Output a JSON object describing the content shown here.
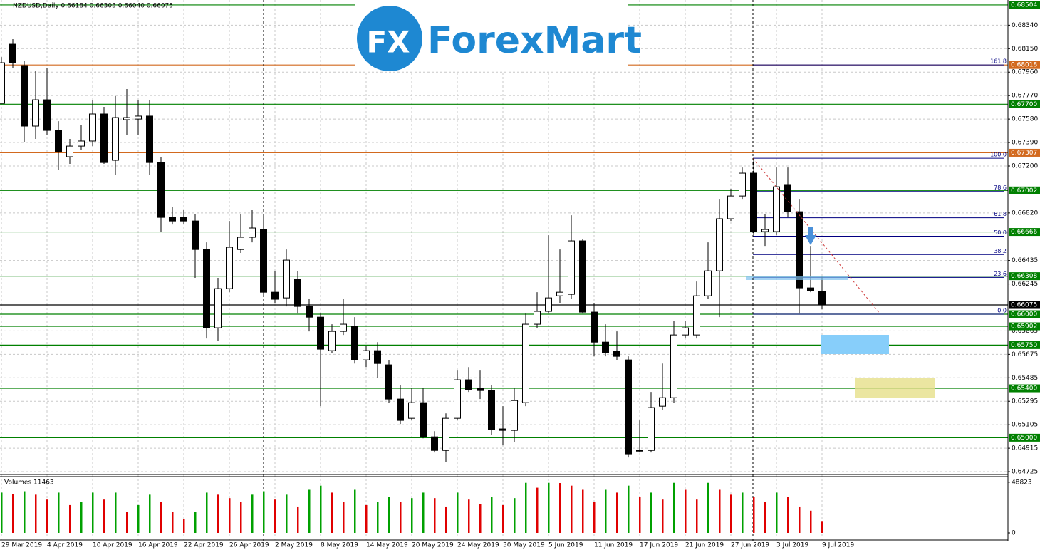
{
  "logo": {
    "icon": "FX",
    "name": "ForexMart"
  },
  "chart_data": {
    "type": "candlestick",
    "title": "NZDUSD,Daily  0.66184 0.66303 0.66040 0.66075",
    "categories": [
      "29 Mar 2019",
      null,
      null,
      null,
      "4 Apr 2019",
      null,
      null,
      null,
      "10 Apr 2019",
      null,
      null,
      null,
      "16 Apr 2019",
      null,
      null,
      null,
      "22 Apr 2019",
      null,
      null,
      null,
      "26 Apr 2019",
      null,
      null,
      null,
      "2 May 2019",
      null,
      null,
      null,
      "8 May 2019",
      null,
      null,
      null,
      "14 May 2019",
      null,
      null,
      null,
      "20 May 2019",
      null,
      null,
      null,
      "24 May 2019",
      null,
      null,
      null,
      "30 May 2019",
      null,
      null,
      null,
      "5 Jun 2019",
      null,
      null,
      null,
      "11 Jun 2019",
      null,
      null,
      null,
      "17 Jun 2019",
      null,
      null,
      null,
      "21 Jun 2019",
      null,
      null,
      null,
      "27 Jun 2019",
      null,
      null,
      null,
      "3 Jul 2019",
      null,
      null,
      null,
      "9 Jul 2019"
    ],
    "open": [
      0.67707,
      0.68186,
      0.68013,
      0.67523,
      0.67736,
      0.67488,
      0.67275,
      0.67361,
      0.67402,
      0.67621,
      0.67246,
      0.67575,
      0.6758,
      0.67604,
      0.67228,
      0.66784,
      0.66784,
      0.66755,
      0.66524,
      0.6589,
      0.66207,
      0.66524,
      0.66623,
      0.66686,
      0.66178,
      0.66132,
      0.66282,
      0.66063,
      0.65976,
      0.65705,
      0.65861,
      0.65901,
      0.6563,
      0.65705,
      0.6559,
      0.65313,
      0.65157,
      0.65284,
      0.65007,
      0.64897,
      0.65157,
      0.65469,
      0.65399,
      0.65382,
      0.65071,
      0.65059,
      0.65284,
      0.65919,
      0.66023,
      0.66149,
      0.66161,
      0.66594,
      0.66017,
      0.65774,
      0.65699,
      0.6563,
      0.64897,
      0.64897,
      0.65255,
      0.65324,
      0.65832,
      0.65832,
      0.66149,
      0.66351,
      0.66773,
      0.66957,
      0.67142,
      0.66669,
      0.66669,
      0.6705,
      0.6683,
      0.66213,
      0.66184
    ],
    "high": [
      0.68082,
      0.68227,
      0.68054,
      0.67967,
      0.67996,
      0.67563,
      0.67419,
      0.67534,
      0.67736,
      0.67679,
      0.67765,
      0.67823,
      0.67736,
      0.67736,
      0.67275,
      0.66871,
      0.66842,
      0.66813,
      0.66582,
      0.66294,
      0.66755,
      0.66813,
      0.66842,
      0.66813,
      0.66351,
      0.66524,
      0.66351,
      0.66121,
      0.66005,
      0.65919,
      0.66121,
      0.65976,
      0.65746,
      0.65774,
      0.6563,
      0.65428,
      0.65399,
      0.65399,
      0.65053,
      0.65197,
      0.65544,
      0.65572,
      0.65544,
      0.65428,
      0.65255,
      0.65399,
      0.66005,
      0.66178,
      0.6664,
      0.66524,
      0.66801,
      0.66611,
      0.66092,
      0.65919,
      0.65861,
      0.65659,
      0.6514,
      0.65371,
      0.65601,
      0.65948,
      0.65948,
      0.66265,
      0.66582,
      0.66928,
      0.67015,
      0.67188,
      0.67263,
      0.66813,
      0.67188,
      0.67188,
      0.66928,
      0.66553,
      0.66303
    ],
    "low": [
      0.67707,
      0.67996,
      0.6739,
      0.67419,
      0.67448,
      0.67171,
      0.67217,
      0.67332,
      0.67361,
      0.67217,
      0.6713,
      0.67448,
      0.67448,
      0.6713,
      0.66669,
      0.66726,
      0.66726,
      0.66294,
      0.65803,
      0.65786,
      0.66178,
      0.66496,
      0.66582,
      0.66149,
      0.66092,
      0.66063,
      0.66005,
      0.65861,
      0.65255,
      0.65688,
      0.65832,
      0.65601,
      0.65572,
      0.65486,
      0.65284,
      0.65111,
      0.6514,
      0.64995,
      0.6488,
      0.64805,
      0.6514,
      0.65371,
      0.65313,
      0.65024,
      0.64938,
      0.64967,
      0.65255,
      0.6589,
      0.66005,
      0.66092,
      0.66121,
      0.66005,
      0.65659,
      0.65659,
      0.6563,
      0.6484,
      0.6488,
      0.6488,
      0.65226,
      0.65284,
      0.65803,
      0.65803,
      0.66121,
      0.65976,
      0.66755,
      0.66928,
      0.6664,
      0.66553,
      0.6664,
      0.66784,
      0.66005,
      0.66178,
      0.6604
    ],
    "close": [
      0.68036,
      0.68036,
      0.67523,
      0.67736,
      0.67488,
      0.67315,
      0.67361,
      0.67402,
      0.67621,
      0.67228,
      0.67592,
      0.67592,
      0.67604,
      0.67228,
      0.66784,
      0.66755,
      0.66755,
      0.66524,
      0.6589,
      0.66207,
      0.66542,
      0.66623,
      0.66698,
      0.66178,
      0.66121,
      0.66438,
      0.66063,
      0.65976,
      0.65717,
      0.65861,
      0.65919,
      0.6563,
      0.65705,
      0.65601,
      0.65313,
      0.6514,
      0.65284,
      0.65007,
      0.64897,
      0.65157,
      0.65469,
      0.65388,
      0.65382,
      0.65065,
      0.65059,
      0.65301,
      0.65919,
      0.66023,
      0.66132,
      0.66178,
      0.66594,
      0.66017,
      0.65774,
      0.65688,
      0.65659,
      0.64869,
      0.64892,
      0.65244,
      0.65324,
      0.65832,
      0.6589,
      0.66149,
      0.66351,
      0.66773,
      0.66957,
      0.67142,
      0.66669,
      0.66686,
      0.67032,
      0.6683,
      0.66213,
      0.6619,
      0.66075
    ],
    "up_color": "#ffffff",
    "down_color": "#000000",
    "ylim": [
      0.64708,
      0.68544
    ],
    "yticks": [
      {
        "value": 0.6834,
        "label": "0.68340"
      },
      {
        "value": 0.6815,
        "label": "0.68150"
      },
      {
        "value": 0.6796,
        "label": "0.67960"
      },
      {
        "value": 0.6777,
        "label": "0.67770"
      },
      {
        "value": 0.6758,
        "label": "0.67580"
      },
      {
        "value": 0.6739,
        "label": "0.67390"
      },
      {
        "value": 0.672,
        "label": "0.67200"
      },
      {
        "value": 0.6682,
        "label": "0.66820"
      },
      {
        "value": 0.66435,
        "label": "0.66435"
      },
      {
        "value": 0.66245,
        "label": "0.66245"
      },
      {
        "value": 0.65865,
        "label": "0.65865"
      },
      {
        "value": 0.65675,
        "label": "0.65675"
      },
      {
        "value": 0.65485,
        "label": "0.65485"
      },
      {
        "value": 0.65295,
        "label": "0.65295"
      },
      {
        "value": 0.65105,
        "label": "0.65105"
      },
      {
        "value": 0.64915,
        "label": "0.64915"
      },
      {
        "value": 0.64725,
        "label": "0.64725"
      }
    ],
    "grid": true,
    "levels": [
      {
        "value": 0.68504,
        "label": "0.68504",
        "color": "#008000"
      },
      {
        "value": 0.68018,
        "label": "0.68018",
        "color": "#d2691e"
      },
      {
        "value": 0.677,
        "label": "0.67700",
        "color": "#008000"
      },
      {
        "value": 0.67307,
        "label": "0.67307",
        "color": "#d2691e"
      },
      {
        "value": 0.67002,
        "label": "0.67002",
        "color": "#008000"
      },
      {
        "value": 0.66666,
        "label": "0.66666",
        "color": "#008000"
      },
      {
        "value": 0.66308,
        "label": "0.66308",
        "color": "#008000"
      },
      {
        "value": 0.66075,
        "label": "0.66075",
        "color": "#000000"
      },
      {
        "value": 0.66,
        "label": "0.66000",
        "color": "#008000"
      },
      {
        "value": 0.65902,
        "label": "0.65902",
        "color": "#008000"
      },
      {
        "value": 0.6575,
        "label": "0.65750",
        "color": "#008000"
      },
      {
        "value": 0.654,
        "label": "0.65400",
        "color": "#008000"
      },
      {
        "value": 0.65,
        "label": "0.65000",
        "color": "#008000"
      }
    ],
    "fib": [
      {
        "label": "161.8",
        "value": 0.68018
      },
      {
        "label": "100.0",
        "value": 0.67263
      },
      {
        "label": "78.6",
        "value": 0.66994
      },
      {
        "label": "61.8",
        "value": 0.66781
      },
      {
        "label": "50.0",
        "value": 0.66632
      },
      {
        "label": "38.2",
        "value": 0.66483
      },
      {
        "label": "23.6",
        "value": 0.66298
      },
      {
        "label": "0.0",
        "value": 0.66
      }
    ],
    "fib_color": "#000080",
    "volume_title": "Volumes 11463",
    "volumes": [
      38800,
      37500,
      40100,
      36800,
      32100,
      38800,
      26800,
      30100,
      38800,
      32100,
      38800,
      20100,
      26800,
      36800,
      30100,
      20100,
      13400,
      20100,
      38800,
      36800,
      33500,
      30100,
      36800,
      40100,
      32100,
      36800,
      25400,
      41500,
      45500,
      38800,
      30100,
      41500,
      26800,
      30100,
      34800,
      30100,
      33500,
      38800,
      33500,
      25400,
      38800,
      32100,
      28100,
      34800,
      26800,
      33500,
      48200,
      43500,
      48200,
      48000,
      45500,
      41500,
      30100,
      41500,
      38800,
      45500,
      34800,
      38800,
      32100,
      48200,
      41500,
      32100,
      48200,
      41500,
      36800,
      38800,
      34800,
      30100,
      38800,
      34800,
      25400,
      21400,
      11463
    ],
    "volume_up_color": "#00a000",
    "volume_down_color": "#e00000",
    "vlim": [
      0,
      53500
    ],
    "vticks": [
      0,
      48823
    ]
  }
}
